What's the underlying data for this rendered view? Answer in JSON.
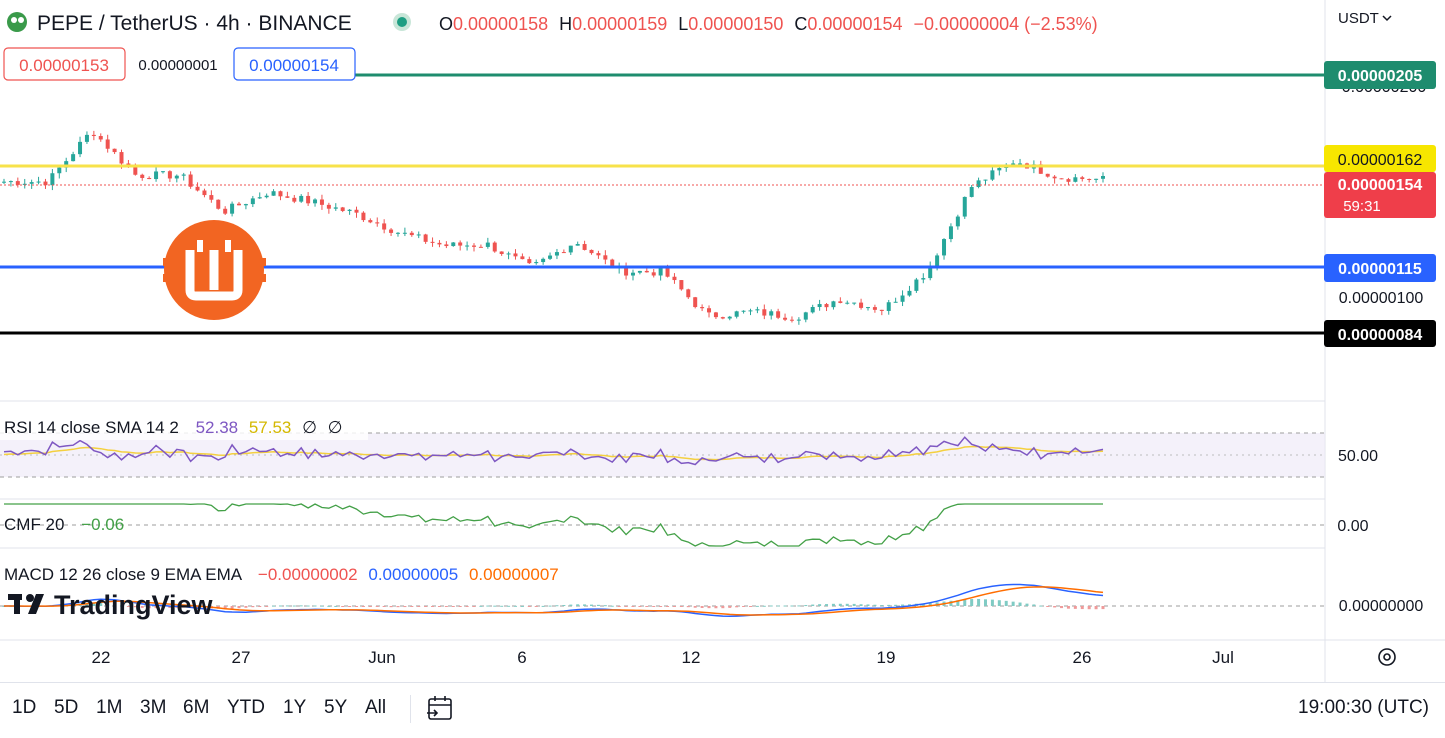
{
  "header": {
    "symbol": "PEPE / TetherUS · 4h · BINANCE",
    "o_label": "O",
    "o_value": "0.00000158",
    "h_label": "H",
    "h_value": "0.00000159",
    "l_label": "L",
    "l_value": "0.00000150",
    "c_label": "C",
    "c_value": "0.00000154",
    "change": "−0.00000004 (−2.53%)",
    "currency": "USDT"
  },
  "order_boxes": {
    "sell": "0.00000153",
    "spread": "0.00000001",
    "buy": "0.00000154"
  },
  "price_axis": {
    "labels": [
      "0.00000200",
      "0.00000100"
    ],
    "levels": [
      {
        "value": "0.00000205",
        "color": "#26a69a",
        "bg": "#1e8c6e",
        "fg": "#ffffff"
      },
      {
        "value": "0.00000162",
        "color": "#f7e24a",
        "bg": "#f7e600",
        "fg": "#131722"
      },
      {
        "value": "0.00000115",
        "color": "#2962ff",
        "bg": "#2962ff",
        "fg": "#ffffff"
      },
      {
        "value": "0.00000084",
        "color": "#000000",
        "bg": "#000000",
        "fg": "#ffffff"
      }
    ],
    "last_price": "0.00000154",
    "countdown": "59:31"
  },
  "indicators": {
    "rsi": {
      "label": "RSI 14 close SMA 14 2",
      "v1": "52.38",
      "v2": "57.53",
      "v3": "∅",
      "v4": "∅",
      "axis": "50.00"
    },
    "cmf": {
      "label": "CMF 20",
      "v1": "−0.06",
      "axis": "0.00"
    },
    "macd": {
      "label": "MACD 12 26 close 9 EMA EMA",
      "v1": "−0.00000002",
      "v2": "0.00000005",
      "v3": "0.00000007",
      "axis": "0.00000000"
    }
  },
  "time_axis": [
    "22",
    "27",
    "Jun",
    "6",
    "12",
    "19",
    "26",
    "Jul"
  ],
  "toolbar": {
    "ranges": [
      "1D",
      "5D",
      "1M",
      "3M",
      "6M",
      "YTD",
      "1Y",
      "5Y",
      "All"
    ],
    "clock": "19:00:30 (UTC)"
  },
  "brand": "TradingView",
  "colors": {
    "up": "#26a69a",
    "down": "#ef5350",
    "rsi": "#7e57c2",
    "rsi_ma": "#f4d03f",
    "cmf": "#43a047",
    "macd": "#2962ff",
    "signal": "#ff6d00"
  },
  "chart_data": {
    "type": "candlestick",
    "title": "PEPE / TetherUS · 4h · BINANCE",
    "x_ticks": [
      "22",
      "27",
      "Jun",
      "6",
      "12",
      "19",
      "26",
      "Jul"
    ],
    "y_ticks": [
      "0.00000100",
      "0.00000200"
    ],
    "horizontal_levels": [
      "0.00000205",
      "0.00000162",
      "0.00000115",
      "0.00000084"
    ],
    "anchors": [
      [
        1.56e-06,
        1.54e-06
      ],
      [
        1.52e-06,
        1.58e-06
      ],
      [
        1.8e-06,
        1.78e-06
      ],
      [
        1.6e-06,
        1.56e-06
      ],
      [
        1.58e-06,
        1.58e-06
      ],
      [
        1.38e-06,
        1.44e-06
      ],
      [
        1.5e-06,
        1.5e-06
      ],
      [
        1.46e-06,
        1.45e-06
      ],
      [
        1.4e-06,
        1.4e-06
      ],
      [
        1.36e-06,
        1.26e-06
      ],
      [
        1.25e-06,
        1.25e-06
      ],
      [
        1.26e-06,
        1.25e-06
      ],
      [
        1.2e-06,
        1.09e-06
      ],
      [
        1.27e-06,
        1.27e-06
      ],
      [
        1.13e-06,
        1.13e-06
      ],
      [
        1.1e-06,
        1.15e-06
      ],
      [
        9.2e-07,
        9.2e-07
      ],
      [
        9.4e-07,
        9.4e-07
      ],
      [
        9e-07,
        9.3e-07
      ],
      [
        1e-06,
        1e-06
      ],
      [
        9.5e-07,
        9.5e-07
      ],
      [
        1.07e-06,
        1.19e-06
      ],
      [
        1.5e-06,
        1.55e-06
      ],
      [
        1.64e-06,
        1.66e-06
      ],
      [
        1.58e-06,
        1.56e-06
      ],
      [
        1.58e-06,
        1.54e-06
      ]
    ]
  }
}
